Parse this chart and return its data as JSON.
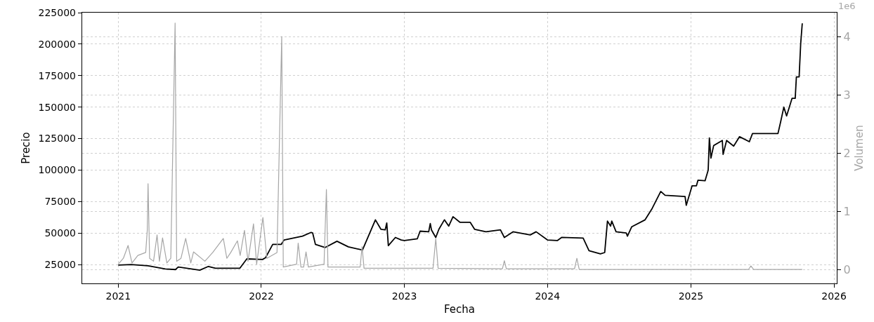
{
  "chart_data": {
    "type": "line",
    "xlabel": "Fecha",
    "ylabel": "Precio",
    "y2label": "Volumen",
    "annotations": [
      "1e6"
    ],
    "xlim": [
      "2020-10-01",
      "2026-01-08"
    ],
    "xticks": [
      {
        "value": "2021-01-01",
        "label": "2021"
      },
      {
        "value": "2022-01-01",
        "label": "2022"
      },
      {
        "value": "2023-01-01",
        "label": "2023"
      },
      {
        "value": "2024-01-01",
        "label": "2024"
      },
      {
        "value": "2025-01-01",
        "label": "2025"
      },
      {
        "value": "2026-01-01",
        "label": "2026"
      }
    ],
    "ylim": [
      10000,
      225000
    ],
    "yticks": [
      25000,
      50000,
      75000,
      100000,
      125000,
      150000,
      175000,
      200000,
      225000
    ],
    "y2lim": [
      -0.23,
      4.41
    ],
    "y2ticks": [
      0,
      1,
      2,
      3,
      4
    ],
    "grid": true,
    "line_style": "solid",
    "marker": "none",
    "series": [
      {
        "color": "#000000",
        "x": [
          "2021-01-01",
          "2021-02-03",
          "2021-03-18",
          "2021-05-01",
          "2021-05-27",
          "2021-06-03",
          "2021-07-28",
          "2021-08-19",
          "2021-09-06",
          "2021-11-07",
          "2021-11-25",
          "2022-01-04",
          "2022-01-12",
          "2022-01-30",
          "2022-02-21",
          "2022-02-28",
          "2022-04-16",
          "2022-05-08",
          "2022-05-12",
          "2022-05-19",
          "2022-06-13",
          "2022-07-13",
          "2022-08-11",
          "2022-09-16",
          "2022-10-19",
          "2022-11-02",
          "2022-11-13",
          "2022-11-17",
          "2022-11-21",
          "2022-12-09",
          "2022-12-24",
          "2023-01-01",
          "2023-02-03",
          "2023-02-10",
          "2023-03-04",
          "2023-03-08",
          "2023-03-11",
          "2023-03-22",
          "2023-03-30",
          "2023-04-13",
          "2023-04-24",
          "2023-05-05",
          "2023-05-23",
          "2023-06-18",
          "2023-06-29",
          "2023-07-28",
          "2023-09-03",
          "2023-09-13",
          "2023-10-05",
          "2023-11-18",
          "2023-12-03",
          "2024-01-01",
          "2024-01-26",
          "2024-02-06",
          "2024-04-01",
          "2024-04-16",
          "2024-05-15",
          "2024-05-26",
          "2024-06-02",
          "2024-06-10",
          "2024-06-13",
          "2024-06-24",
          "2024-07-20",
          "2024-07-23",
          "2024-08-03",
          "2024-09-06",
          "2024-09-24",
          "2024-10-16",
          "2024-10-27",
          "2024-12-17",
          "2024-12-20",
          "2025-01-04",
          "2025-01-15",
          "2025-01-19",
          "2025-02-06",
          "2025-02-14",
          "2025-02-17",
          "2025-02-21",
          "2025-02-28",
          "2025-03-22",
          "2025-03-24",
          "2025-04-02",
          "2025-04-20",
          "2025-05-05",
          "2025-05-30",
          "2025-06-07",
          "2025-08-11",
          "2025-08-18",
          "2025-08-26",
          "2025-09-02",
          "2025-09-09",
          "2025-09-16",
          "2025-09-24",
          "2025-09-27",
          "2025-10-04",
          "2025-10-08",
          "2025-10-12"
        ],
        "values": [
          24500,
          25000,
          24000,
          21500,
          21000,
          23000,
          20500,
          23500,
          22000,
          22000,
          29500,
          29000,
          30500,
          41000,
          41000,
          44500,
          47500,
          50500,
          50000,
          41000,
          38500,
          43500,
          39000,
          36500,
          60500,
          53000,
          52500,
          58000,
          40000,
          46500,
          44500,
          44000,
          45500,
          51500,
          51000,
          57500,
          52500,
          46500,
          53000,
          60500,
          55500,
          63000,
          58500,
          58500,
          53000,
          51000,
          52500,
          46500,
          51000,
          48500,
          51000,
          44500,
          44000,
          46500,
          46000,
          36000,
          33500,
          34500,
          59500,
          55500,
          59500,
          51000,
          50000,
          47500,
          55000,
          60500,
          69500,
          83000,
          80000,
          79000,
          72000,
          87500,
          87500,
          92000,
          91500,
          100000,
          125500,
          109500,
          119500,
          123500,
          112500,
          123500,
          119000,
          126500,
          122500,
          129000,
          129000,
          138500,
          150000,
          143000,
          150000,
          157000,
          157000,
          174000,
          174000,
          200500,
          216500
        ]
      },
      {
        "color": "#a6a6a6",
        "axis": "y2",
        "x": [
          "2021-01-01",
          "2021-01-14",
          "2021-01-26",
          "2021-02-05",
          "2021-02-20",
          "2021-03-12",
          "2021-03-16",
          "2021-03-18",
          "2021-03-22",
          "2021-04-01",
          "2021-04-10",
          "2021-04-16",
          "2021-04-24",
          "2021-05-05",
          "2021-05-15",
          "2021-05-26",
          "2021-05-30",
          "2021-06-10",
          "2021-06-22",
          "2021-07-05",
          "2021-07-12",
          "2021-08-10",
          "2021-08-30",
          "2021-09-26",
          "2021-10-05",
          "2021-10-15",
          "2021-11-01",
          "2021-11-08",
          "2021-11-19",
          "2021-11-28",
          "2021-12-12",
          "2021-12-20",
          "2022-01-05",
          "2022-01-15",
          "2022-02-10",
          "2022-02-22",
          "2022-02-26",
          "2022-04-01",
          "2022-04-05",
          "2022-04-12",
          "2022-04-19",
          "2022-04-25",
          "2022-05-01",
          "2022-06-10",
          "2022-06-16",
          "2022-06-20",
          "2022-09-10",
          "2022-09-15",
          "2022-09-20",
          "2023-03-15",
          "2023-03-22",
          "2023-03-28",
          "2023-09-08",
          "2023-09-13",
          "2023-09-18",
          "2024-03-10",
          "2024-03-16",
          "2024-03-22",
          "2025-05-28",
          "2025-06-03",
          "2025-06-10",
          "2025-10-12"
        ],
        "values": [
          0.1,
          0.2,
          0.42,
          0.12,
          0.25,
          0.3,
          0.68,
          1.48,
          0.2,
          0.15,
          0.6,
          0.15,
          0.55,
          0.12,
          0.2,
          4.23,
          0.15,
          0.2,
          0.54,
          0.12,
          0.31,
          0.15,
          0.3,
          0.54,
          0.2,
          0.3,
          0.5,
          0.25,
          0.68,
          0.15,
          0.79,
          0.1,
          0.9,
          0.2,
          0.3,
          4.0,
          0.05,
          0.1,
          0.46,
          0.05,
          0.05,
          0.31,
          0.05,
          0.1,
          1.38,
          0.05,
          0.05,
          0.4,
          0.03,
          0.03,
          0.54,
          0.03,
          0.02,
          0.16,
          0.02,
          0.02,
          0.2,
          0.01,
          0.01,
          0.07,
          0.01,
          0.01
        ]
      }
    ]
  }
}
